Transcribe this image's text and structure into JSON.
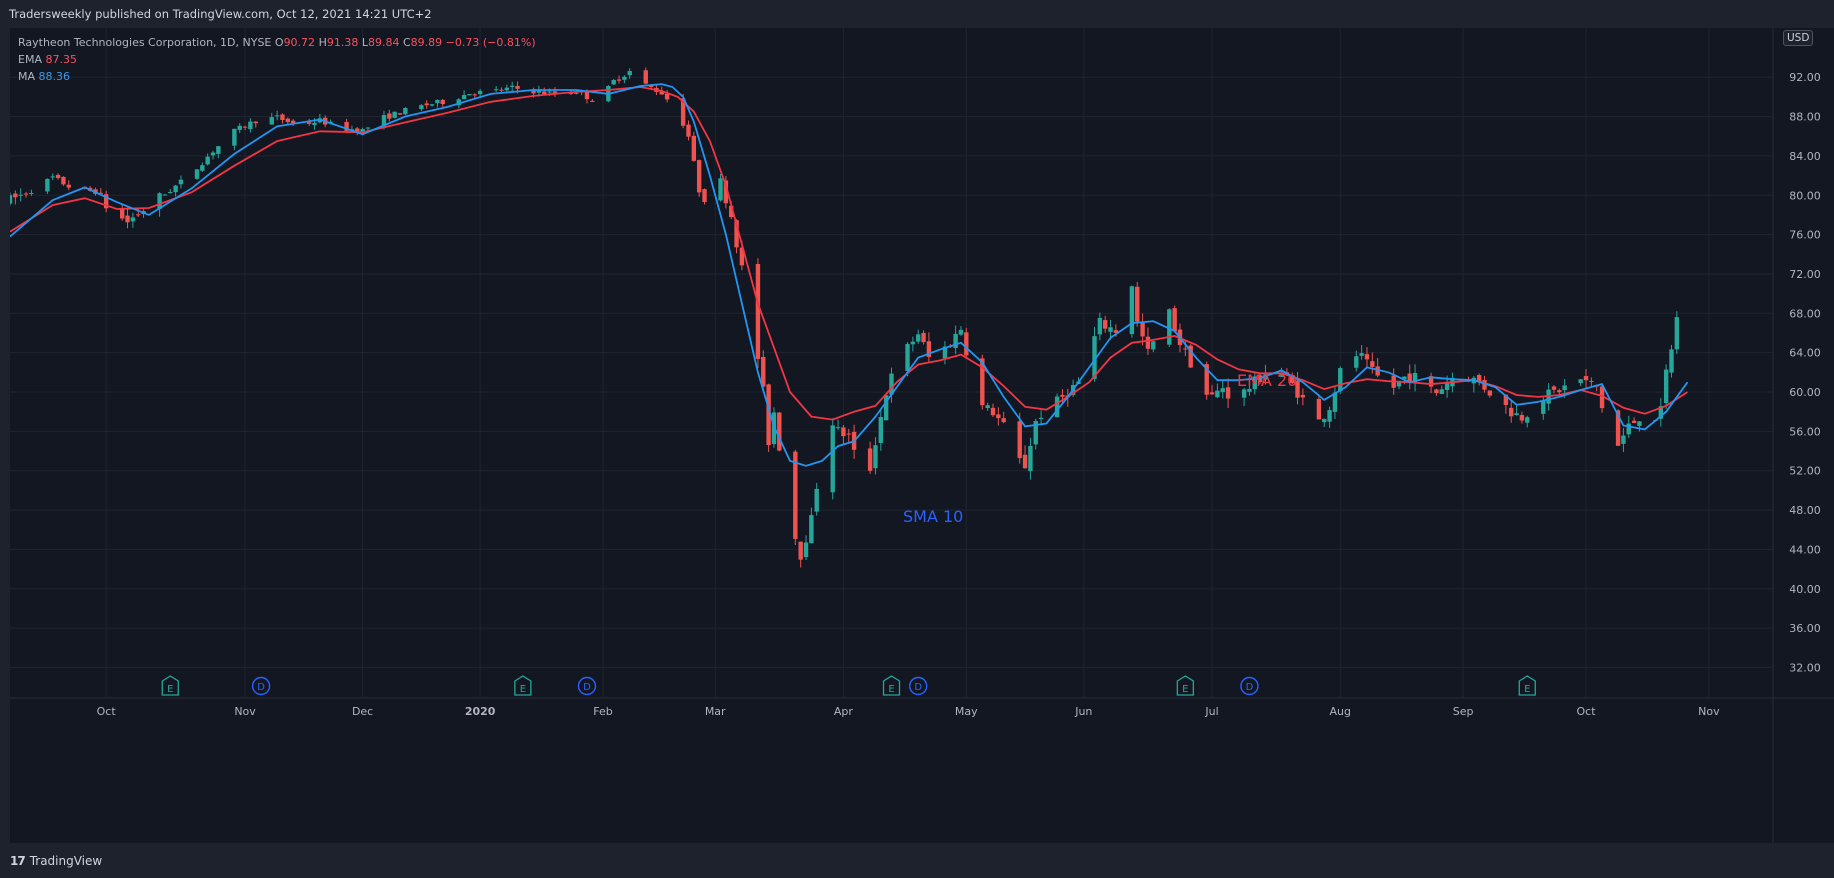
{
  "header": {
    "published": "Tradersweekly published on TradingView.com, Oct 12, 2021 14:21 UTC+2"
  },
  "footer": {
    "brand": "TradingView"
  },
  "legend": {
    "symbol": "Raytheon Technologies Corporation, 1D, NYSE",
    "o_label": "O",
    "o_value": "90.72",
    "h_label": "H",
    "h_value": "91.38",
    "l_label": "L",
    "l_value": "89.84",
    "c_label": "C",
    "c_value": "89.89",
    "change": "−0.73 (−0.81%)",
    "ema_label": "EMA",
    "ema_value": "87.35",
    "ma_label": "MA",
    "ma_value": "88.36"
  },
  "currency": "USD",
  "colors": {
    "up": "#26a69a",
    "down": "#ef5350",
    "ema_line": "#f23645",
    "sma_line": "#2196f3",
    "ema_annotation": "#f23645",
    "sma_annotation": "#2962ff",
    "earnings_marker": "#26a69a",
    "dividend_marker": "#2962ff"
  },
  "chart_data": {
    "type": "candlestick",
    "series": [
      {
        "name": "EMA",
        "period": 20,
        "annotation": "EMA 20"
      },
      {
        "name": "MA",
        "period": 10,
        "annotation": "SMA 10"
      }
    ],
    "y_ticks": [
      "32.00",
      "36.00",
      "40.00",
      "44.00",
      "48.00",
      "52.00",
      "56.00",
      "60.00",
      "64.00",
      "68.00",
      "72.00",
      "76.00",
      "80.00",
      "84.00",
      "88.00",
      "92.00"
    ],
    "ylim": [
      29,
      97
    ],
    "x_ticks": [
      "Oct",
      "Nov",
      "Dec",
      "2020",
      "Feb",
      "Mar",
      "Apr",
      "May",
      "Jun",
      "Jul",
      "Aug",
      "Sep",
      "Oct",
      "Nov"
    ],
    "x_tick_days": [
      18,
      44,
      66,
      88,
      111,
      132,
      156,
      179,
      201,
      225,
      249,
      272,
      295,
      318
    ],
    "x_range_days": [
      0,
      330
    ],
    "price_path": [
      [
        0,
        79.5
      ],
      [
        4,
        80.5
      ],
      [
        8,
        81.8
      ],
      [
        12,
        80.6
      ],
      [
        16,
        80.4
      ],
      [
        19,
        78.2
      ],
      [
        22,
        77.3
      ],
      [
        26,
        79.0
      ],
      [
        30,
        80.5
      ],
      [
        34,
        82.2
      ],
      [
        38,
        84.5
      ],
      [
        42,
        86.5
      ],
      [
        46,
        87.6
      ],
      [
        50,
        87.9
      ],
      [
        54,
        87.1
      ],
      [
        58,
        87.6
      ],
      [
        62,
        86.8
      ],
      [
        66,
        86.6
      ],
      [
        70,
        87.9
      ],
      [
        74,
        88.6
      ],
      [
        78,
        89.2
      ],
      [
        82,
        89.6
      ],
      [
        86,
        90.4
      ],
      [
        90,
        90.5
      ],
      [
        94,
        90.9
      ],
      [
        98,
        90.6
      ],
      [
        102,
        90.3
      ],
      [
        106,
        90.6
      ],
      [
        110,
        89.4
      ],
      [
        113,
        91.6
      ],
      [
        116,
        92.6
      ],
      [
        119,
        91.2
      ],
      [
        122,
        90.4
      ],
      [
        125,
        88.6
      ],
      [
        127,
        86.0
      ],
      [
        129,
        80.5
      ],
      [
        131,
        79.2
      ],
      [
        133,
        81.5
      ],
      [
        135,
        78.0
      ],
      [
        137,
        72.5
      ],
      [
        139,
        67.0
      ],
      [
        141,
        60.0
      ],
      [
        142,
        55.0
      ],
      [
        143,
        58.0
      ],
      [
        145,
        51.0
      ],
      [
        146,
        47.0
      ],
      [
        148,
        43.5
      ],
      [
        150,
        47.0
      ],
      [
        152,
        54.0
      ],
      [
        153,
        58.0
      ],
      [
        155,
        56.0
      ],
      [
        157,
        55.5
      ],
      [
        159,
        52.0
      ],
      [
        160,
        49.5
      ],
      [
        162,
        55.0
      ],
      [
        164,
        60.0
      ],
      [
        166,
        63.0
      ],
      [
        168,
        64.5
      ],
      [
        170,
        66.0
      ],
      [
        172,
        63.5
      ],
      [
        174,
        64.0
      ],
      [
        176,
        65.0
      ],
      [
        178,
        66.5
      ],
      [
        180,
        62.0
      ],
      [
        182,
        58.5
      ],
      [
        184,
        58.0
      ],
      [
        186,
        56.5
      ],
      [
        188,
        55.5
      ],
      [
        189,
        53.0
      ],
      [
        190,
        52.5
      ],
      [
        192,
        57.0
      ],
      [
        194,
        58.5
      ],
      [
        196,
        59.0
      ],
      [
        198,
        60.0
      ],
      [
        200,
        61.0
      ],
      [
        202,
        64.0
      ],
      [
        204,
        67.0
      ],
      [
        206,
        66.5
      ],
      [
        208,
        66.0
      ],
      [
        209,
        72.0
      ],
      [
        210,
        71.0
      ],
      [
        211,
        67.0
      ],
      [
        213,
        64.0
      ],
      [
        215,
        66.0
      ],
      [
        217,
        68.0
      ],
      [
        219,
        65.0
      ],
      [
        221,
        63.0
      ],
      [
        223,
        60.0
      ],
      [
        225,
        59.5
      ],
      [
        227,
        60.5
      ],
      [
        229,
        59.0
      ],
      [
        231,
        60.0
      ],
      [
        233,
        61.0
      ],
      [
        235,
        62.0
      ],
      [
        237,
        62.5
      ],
      [
        239,
        61.5
      ],
      [
        241,
        60.0
      ],
      [
        243,
        58.5
      ],
      [
        245,
        57.0
      ],
      [
        247,
        58.5
      ],
      [
        249,
        62.0
      ],
      [
        251,
        64.0
      ],
      [
        253,
        63.5
      ],
      [
        255,
        62.0
      ],
      [
        257,
        61.0
      ],
      [
        259,
        60.5
      ],
      [
        261,
        61.5
      ],
      [
        263,
        61.5
      ],
      [
        265,
        60.5
      ],
      [
        267,
        60.0
      ],
      [
        269,
        61.0
      ],
      [
        271,
        62.0
      ],
      [
        273,
        61.5
      ],
      [
        275,
        61.0
      ],
      [
        277,
        60.0
      ],
      [
        279,
        59.0
      ],
      [
        281,
        58.0
      ],
      [
        283,
        57.5
      ],
      [
        285,
        58.5
      ],
      [
        287,
        59.5
      ],
      [
        289,
        60.0
      ],
      [
        291,
        60.5
      ],
      [
        293,
        61.5
      ],
      [
        295,
        61.0
      ],
      [
        297,
        60.5
      ],
      [
        298,
        58.5
      ],
      [
        299,
        53.0
      ],
      [
        300,
        52.5
      ],
      [
        301,
        54.5
      ],
      [
        303,
        56.5
      ],
      [
        305,
        57.5
      ],
      [
        307,
        57.0
      ],
      [
        309,
        58.0
      ],
      [
        310,
        62.0
      ],
      [
        311,
        64.5
      ],
      [
        312,
        67.5
      ]
    ],
    "ema_path": [
      [
        0,
        76.3
      ],
      [
        8,
        79.0
      ],
      [
        14,
        79.7
      ],
      [
        20,
        78.6
      ],
      [
        26,
        78.7
      ],
      [
        34,
        80.3
      ],
      [
        42,
        83.0
      ],
      [
        50,
        85.5
      ],
      [
        58,
        86.5
      ],
      [
        66,
        86.4
      ],
      [
        74,
        87.4
      ],
      [
        82,
        88.4
      ],
      [
        90,
        89.5
      ],
      [
        98,
        90.1
      ],
      [
        106,
        90.5
      ],
      [
        112,
        90.7
      ],
      [
        118,
        91.0
      ],
      [
        122,
        90.6
      ],
      [
        125,
        90.0
      ],
      [
        128,
        88.5
      ],
      [
        131,
        85.5
      ],
      [
        134,
        81.0
      ],
      [
        137,
        75.0
      ],
      [
        140,
        69.0
      ],
      [
        143,
        64.5
      ],
      [
        146,
        60.0
      ],
      [
        150,
        57.5
      ],
      [
        154,
        57.2
      ],
      [
        158,
        58.0
      ],
      [
        162,
        58.6
      ],
      [
        166,
        61.0
      ],
      [
        170,
        62.8
      ],
      [
        174,
        63.2
      ],
      [
        178,
        63.8
      ],
      [
        182,
        62.5
      ],
      [
        186,
        60.6
      ],
      [
        190,
        58.5
      ],
      [
        194,
        58.2
      ],
      [
        198,
        59.5
      ],
      [
        202,
        61.0
      ],
      [
        206,
        63.5
      ],
      [
        210,
        65.0
      ],
      [
        214,
        65.3
      ],
      [
        218,
        65.7
      ],
      [
        222,
        64.8
      ],
      [
        226,
        63.3
      ],
      [
        230,
        62.3
      ],
      [
        234,
        61.9
      ],
      [
        238,
        61.9
      ],
      [
        242,
        61.2
      ],
      [
        246,
        60.3
      ],
      [
        250,
        60.9
      ],
      [
        254,
        61.3
      ],
      [
        258,
        61.1
      ],
      [
        262,
        61.0
      ],
      [
        266,
        60.8
      ],
      [
        270,
        61.0
      ],
      [
        274,
        61.2
      ],
      [
        278,
        60.6
      ],
      [
        282,
        59.7
      ],
      [
        286,
        59.5
      ],
      [
        290,
        59.7
      ],
      [
        294,
        60.2
      ],
      [
        298,
        59.6
      ],
      [
        302,
        58.4
      ],
      [
        306,
        57.8
      ],
      [
        310,
        58.6
      ],
      [
        314,
        60.0
      ]
    ],
    "sma_path": [
      [
        0,
        75.8
      ],
      [
        8,
        79.5
      ],
      [
        14,
        80.8
      ],
      [
        20,
        79.3
      ],
      [
        26,
        78.0
      ],
      [
        34,
        80.7
      ],
      [
        42,
        84.2
      ],
      [
        50,
        87.0
      ],
      [
        58,
        87.7
      ],
      [
        66,
        86.2
      ],
      [
        74,
        88.0
      ],
      [
        82,
        89.0
      ],
      [
        90,
        90.3
      ],
      [
        98,
        90.7
      ],
      [
        106,
        90.7
      ],
      [
        112,
        90.3
      ],
      [
        118,
        91.1
      ],
      [
        122,
        91.3
      ],
      [
        124,
        91.0
      ],
      [
        126,
        90.0
      ],
      [
        128,
        87.5
      ],
      [
        131,
        82.0
      ],
      [
        134,
        76.0
      ],
      [
        137,
        69.0
      ],
      [
        140,
        62.0
      ],
      [
        143,
        56.5
      ],
      [
        146,
        53.0
      ],
      [
        149,
        52.5
      ],
      [
        152,
        53.0
      ],
      [
        155,
        54.5
      ],
      [
        158,
        55.0
      ],
      [
        162,
        57.5
      ],
      [
        166,
        60.5
      ],
      [
        170,
        63.5
      ],
      [
        174,
        64.3
      ],
      [
        178,
        65.0
      ],
      [
        182,
        63.0
      ],
      [
        186,
        59.5
      ],
      [
        190,
        56.5
      ],
      [
        194,
        56.8
      ],
      [
        198,
        59.5
      ],
      [
        202,
        62.5
      ],
      [
        206,
        65.5
      ],
      [
        210,
        67.0
      ],
      [
        214,
        67.2
      ],
      [
        218,
        66.2
      ],
      [
        222,
        63.5
      ],
      [
        226,
        61.2
      ],
      [
        230,
        61.2
      ],
      [
        234,
        61.4
      ],
      [
        238,
        62.2
      ],
      [
        242,
        61.0
      ],
      [
        246,
        59.2
      ],
      [
        250,
        60.5
      ],
      [
        254,
        62.5
      ],
      [
        258,
        62.0
      ],
      [
        262,
        61.0
      ],
      [
        266,
        61.5
      ],
      [
        270,
        61.3
      ],
      [
        274,
        61.2
      ],
      [
        278,
        60.5
      ],
      [
        282,
        58.7
      ],
      [
        286,
        59.0
      ],
      [
        290,
        59.5
      ],
      [
        294,
        60.2
      ],
      [
        298,
        60.8
      ],
      [
        302,
        56.6
      ],
      [
        306,
        56.2
      ],
      [
        310,
        58.0
      ],
      [
        314,
        61.0
      ]
    ],
    "earnings_days": [
      30,
      96,
      165,
      220,
      284
    ],
    "dividend_days": [
      47,
      108,
      170,
      232
    ],
    "earnings_label": "E",
    "dividend_label": "D",
    "grid": true,
    "legend": "top-left"
  }
}
